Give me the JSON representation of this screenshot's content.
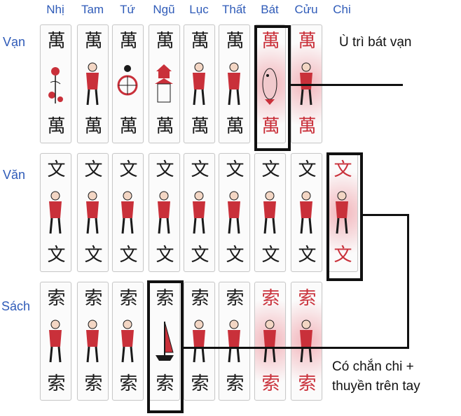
{
  "columns": [
    "Nhị",
    "Tam",
    "Tứ",
    "Ngũ",
    "Lục",
    "Thất",
    "Bát",
    "Cửu",
    "Chi"
  ],
  "rows": [
    {
      "label": "Vạn",
      "top_glyph": "萬",
      "bottom_glyph": "萬",
      "cards": 8
    },
    {
      "label": "Văn",
      "top_glyph": "文",
      "bottom_glyph": "文",
      "cards": 9
    },
    {
      "label": "Sách",
      "top_glyph": "索",
      "bottom_glyph": "索",
      "cards": 8
    }
  ],
  "annotations": {
    "top_note": "Ù trì bát vạn",
    "bottom_note_line1": "Có chắn chi +",
    "bottom_note_line2": "thuyền trên tay"
  },
  "colors": {
    "header_blue": "#2f5bb8",
    "ink_red": "#c9303a",
    "frame": "#111111"
  },
  "icons": [
    "plum-icon",
    "lady-icon",
    "chariot-icon",
    "pagoda-icon",
    "warrior-icon",
    "fish-icon",
    "boat-icon"
  ]
}
